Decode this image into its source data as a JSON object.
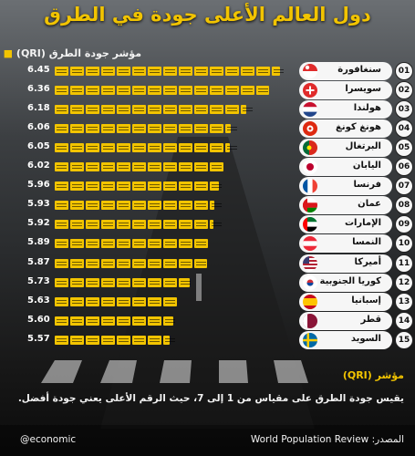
{
  "title": "دول العالم الأعلى جودة في الطرق",
  "subtitle": "مؤشر جودة الطرق (QRI)",
  "chart_data": {
    "type": "bar",
    "title": "دول العالم الأعلى جودة في الطرق",
    "ylabel": "مؤشر جودة الطرق (QRI)",
    "xlim": [
      1,
      7
    ],
    "rows": [
      {
        "rank": "01",
        "country": "سنغافورة",
        "value": 6.45,
        "flag": "singapore-flag"
      },
      {
        "rank": "02",
        "country": "سويسرا",
        "value": 6.36,
        "flag": "switzerland-flag"
      },
      {
        "rank": "03",
        "country": "هولندا",
        "value": 6.18,
        "flag": "netherlands-flag"
      },
      {
        "rank": "04",
        "country": "هونغ كونغ",
        "value": 6.06,
        "flag": "hong-kong-flag"
      },
      {
        "rank": "05",
        "country": "البرتغال",
        "value": 6.05,
        "flag": "portugal-flag"
      },
      {
        "rank": "06",
        "country": "اليابان",
        "value": 6.02,
        "flag": "japan-flag"
      },
      {
        "rank": "07",
        "country": "فرنسا",
        "value": 5.96,
        "flag": "france-flag"
      },
      {
        "rank": "08",
        "country": "عمان",
        "value": 5.93,
        "flag": "oman-flag"
      },
      {
        "rank": "09",
        "country": "الإمارات",
        "value": 5.92,
        "flag": "uae-flag"
      },
      {
        "rank": "10",
        "country": "النمسا",
        "value": 5.89,
        "flag": "austria-flag"
      },
      {
        "rank": "11",
        "country": "أميركا",
        "value": 5.87,
        "flag": "usa-flag"
      },
      {
        "rank": "12",
        "country": "كوريا الجنوبية",
        "value": 5.73,
        "flag": "south-korea-flag"
      },
      {
        "rank": "13",
        "country": "إسبانيا",
        "value": 5.63,
        "flag": "spain-flag"
      },
      {
        "rank": "14",
        "country": "قطر",
        "value": 5.6,
        "flag": "qatar-flag"
      },
      {
        "rank": "15",
        "country": "السويد",
        "value": 5.57,
        "flag": "sweden-flag"
      }
    ]
  },
  "note": {
    "title": "مؤشر (QRI)",
    "text": "يقيس جودة الطرق على مقياس من 1 إلى 7، حيث الرقم الأعلى يعني جودة أفضل."
  },
  "footer": {
    "handle": "@economic",
    "source": "المصدر: World Population Review"
  },
  "colors": {
    "accent": "#f2c400",
    "pill": "#f6f6f6"
  }
}
